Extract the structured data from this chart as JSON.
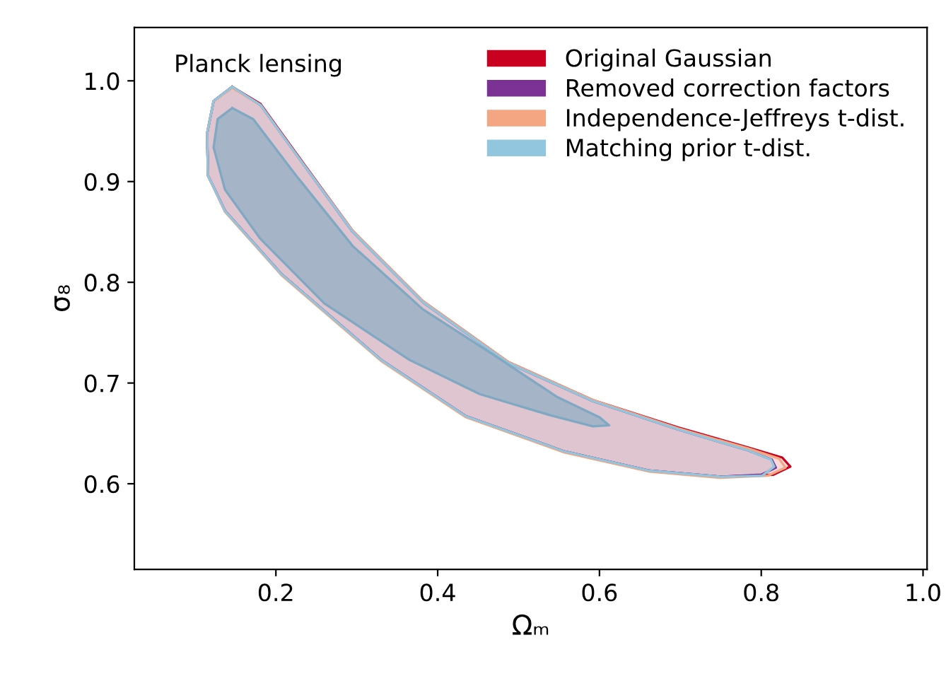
{
  "chart_data": {
    "type": "area",
    "xlabel": "Ωₘ",
    "ylabel": "σ₈",
    "annotations": [
      "Planck lensing"
    ],
    "xlim": [
      0.025,
      1.005
    ],
    "ylim": [
      0.515,
      1.053
    ],
    "xticks": [
      0.2,
      0.4,
      0.6,
      0.8,
      {
        "value": 1,
        "label": "1.0"
      }
    ],
    "yticks": [
      0.6,
      0.7,
      0.8,
      0.9,
      {
        "value": 1,
        "label": "1.0"
      }
    ],
    "grid": false,
    "legend": "top right",
    "series": [
      {
        "name": "Original Gaussian",
        "color": "#ca0020",
        "x": [
          0.146,
          0.181,
          0.225,
          0.295,
          0.382,
          0.487,
          0.592,
          0.697,
          0.784,
          0.826,
          0.836,
          0.815,
          0.749,
          0.662,
          0.557,
          0.435,
          0.33,
          0.207,
          0.137,
          0.116,
          0.115,
          0.123,
          0.146
        ],
        "values": [
          0.994,
          0.977,
          0.928,
          0.851,
          0.781,
          0.721,
          0.683,
          0.656,
          0.636,
          0.626,
          0.617,
          0.609,
          0.607,
          0.613,
          0.632,
          0.667,
          0.723,
          0.808,
          0.871,
          0.906,
          0.948,
          0.98,
          0.994
        ]
      },
      {
        "name": "Removed correction factors",
        "color": "#7b3294",
        "x": [
          0.146,
          0.181,
          0.225,
          0.295,
          0.382,
          0.487,
          0.592,
          0.697,
          0.784,
          0.813,
          0.818,
          0.8,
          0.749,
          0.662,
          0.557,
          0.435,
          0.33,
          0.207,
          0.137,
          0.116,
          0.115,
          0.123,
          0.146
        ],
        "values": [
          0.994,
          0.976,
          0.927,
          0.85,
          0.78,
          0.72,
          0.682,
          0.654,
          0.633,
          0.624,
          0.616,
          0.609,
          0.607,
          0.613,
          0.632,
          0.667,
          0.723,
          0.808,
          0.871,
          0.906,
          0.948,
          0.98,
          0.994
        ]
      },
      {
        "name": "Independence-Jeffreys t-dist.",
        "color": "#f4a582",
        "x": [
          0.146,
          0.181,
          0.225,
          0.295,
          0.382,
          0.487,
          0.592,
          0.697,
          0.784,
          0.822,
          0.83,
          0.808,
          0.749,
          0.662,
          0.557,
          0.435,
          0.33,
          0.207,
          0.137,
          0.116,
          0.115,
          0.123,
          0.146
        ],
        "values": [
          0.993,
          0.976,
          0.927,
          0.851,
          0.781,
          0.721,
          0.683,
          0.655,
          0.635,
          0.625,
          0.616,
          0.608,
          0.606,
          0.612,
          0.631,
          0.666,
          0.722,
          0.807,
          0.87,
          0.906,
          0.948,
          0.98,
          0.993
        ]
      },
      {
        "name": "Matching prior t-dist.",
        "color": "#92c5de",
        "x": [
          0.146,
          0.181,
          0.225,
          0.295,
          0.382,
          0.487,
          0.592,
          0.697,
          0.784,
          0.812,
          0.816,
          0.801,
          0.749,
          0.662,
          0.557,
          0.435,
          0.33,
          0.207,
          0.137,
          0.116,
          0.115,
          0.123,
          0.146
        ],
        "values": [
          0.994,
          0.976,
          0.927,
          0.85,
          0.78,
          0.72,
          0.682,
          0.654,
          0.633,
          0.624,
          0.617,
          0.608,
          0.607,
          0.613,
          0.632,
          0.667,
          0.723,
          0.808,
          0.871,
          0.906,
          0.948,
          0.98,
          0.994
        ]
      },
      {
        "color": "#7fa8c2",
        "x": [
          0.146,
          0.172,
          0.225,
          0.295,
          0.382,
          0.469,
          0.548,
          0.6,
          0.612,
          0.592,
          0.539,
          0.452,
          0.365,
          0.26,
          0.181,
          0.137,
          0.123,
          0.128,
          0.146
        ],
        "values": [
          0.973,
          0.962,
          0.906,
          0.836,
          0.773,
          0.728,
          0.686,
          0.666,
          0.658,
          0.657,
          0.668,
          0.689,
          0.723,
          0.779,
          0.843,
          0.892,
          0.934,
          0.962,
          0.973
        ]
      }
    ]
  }
}
